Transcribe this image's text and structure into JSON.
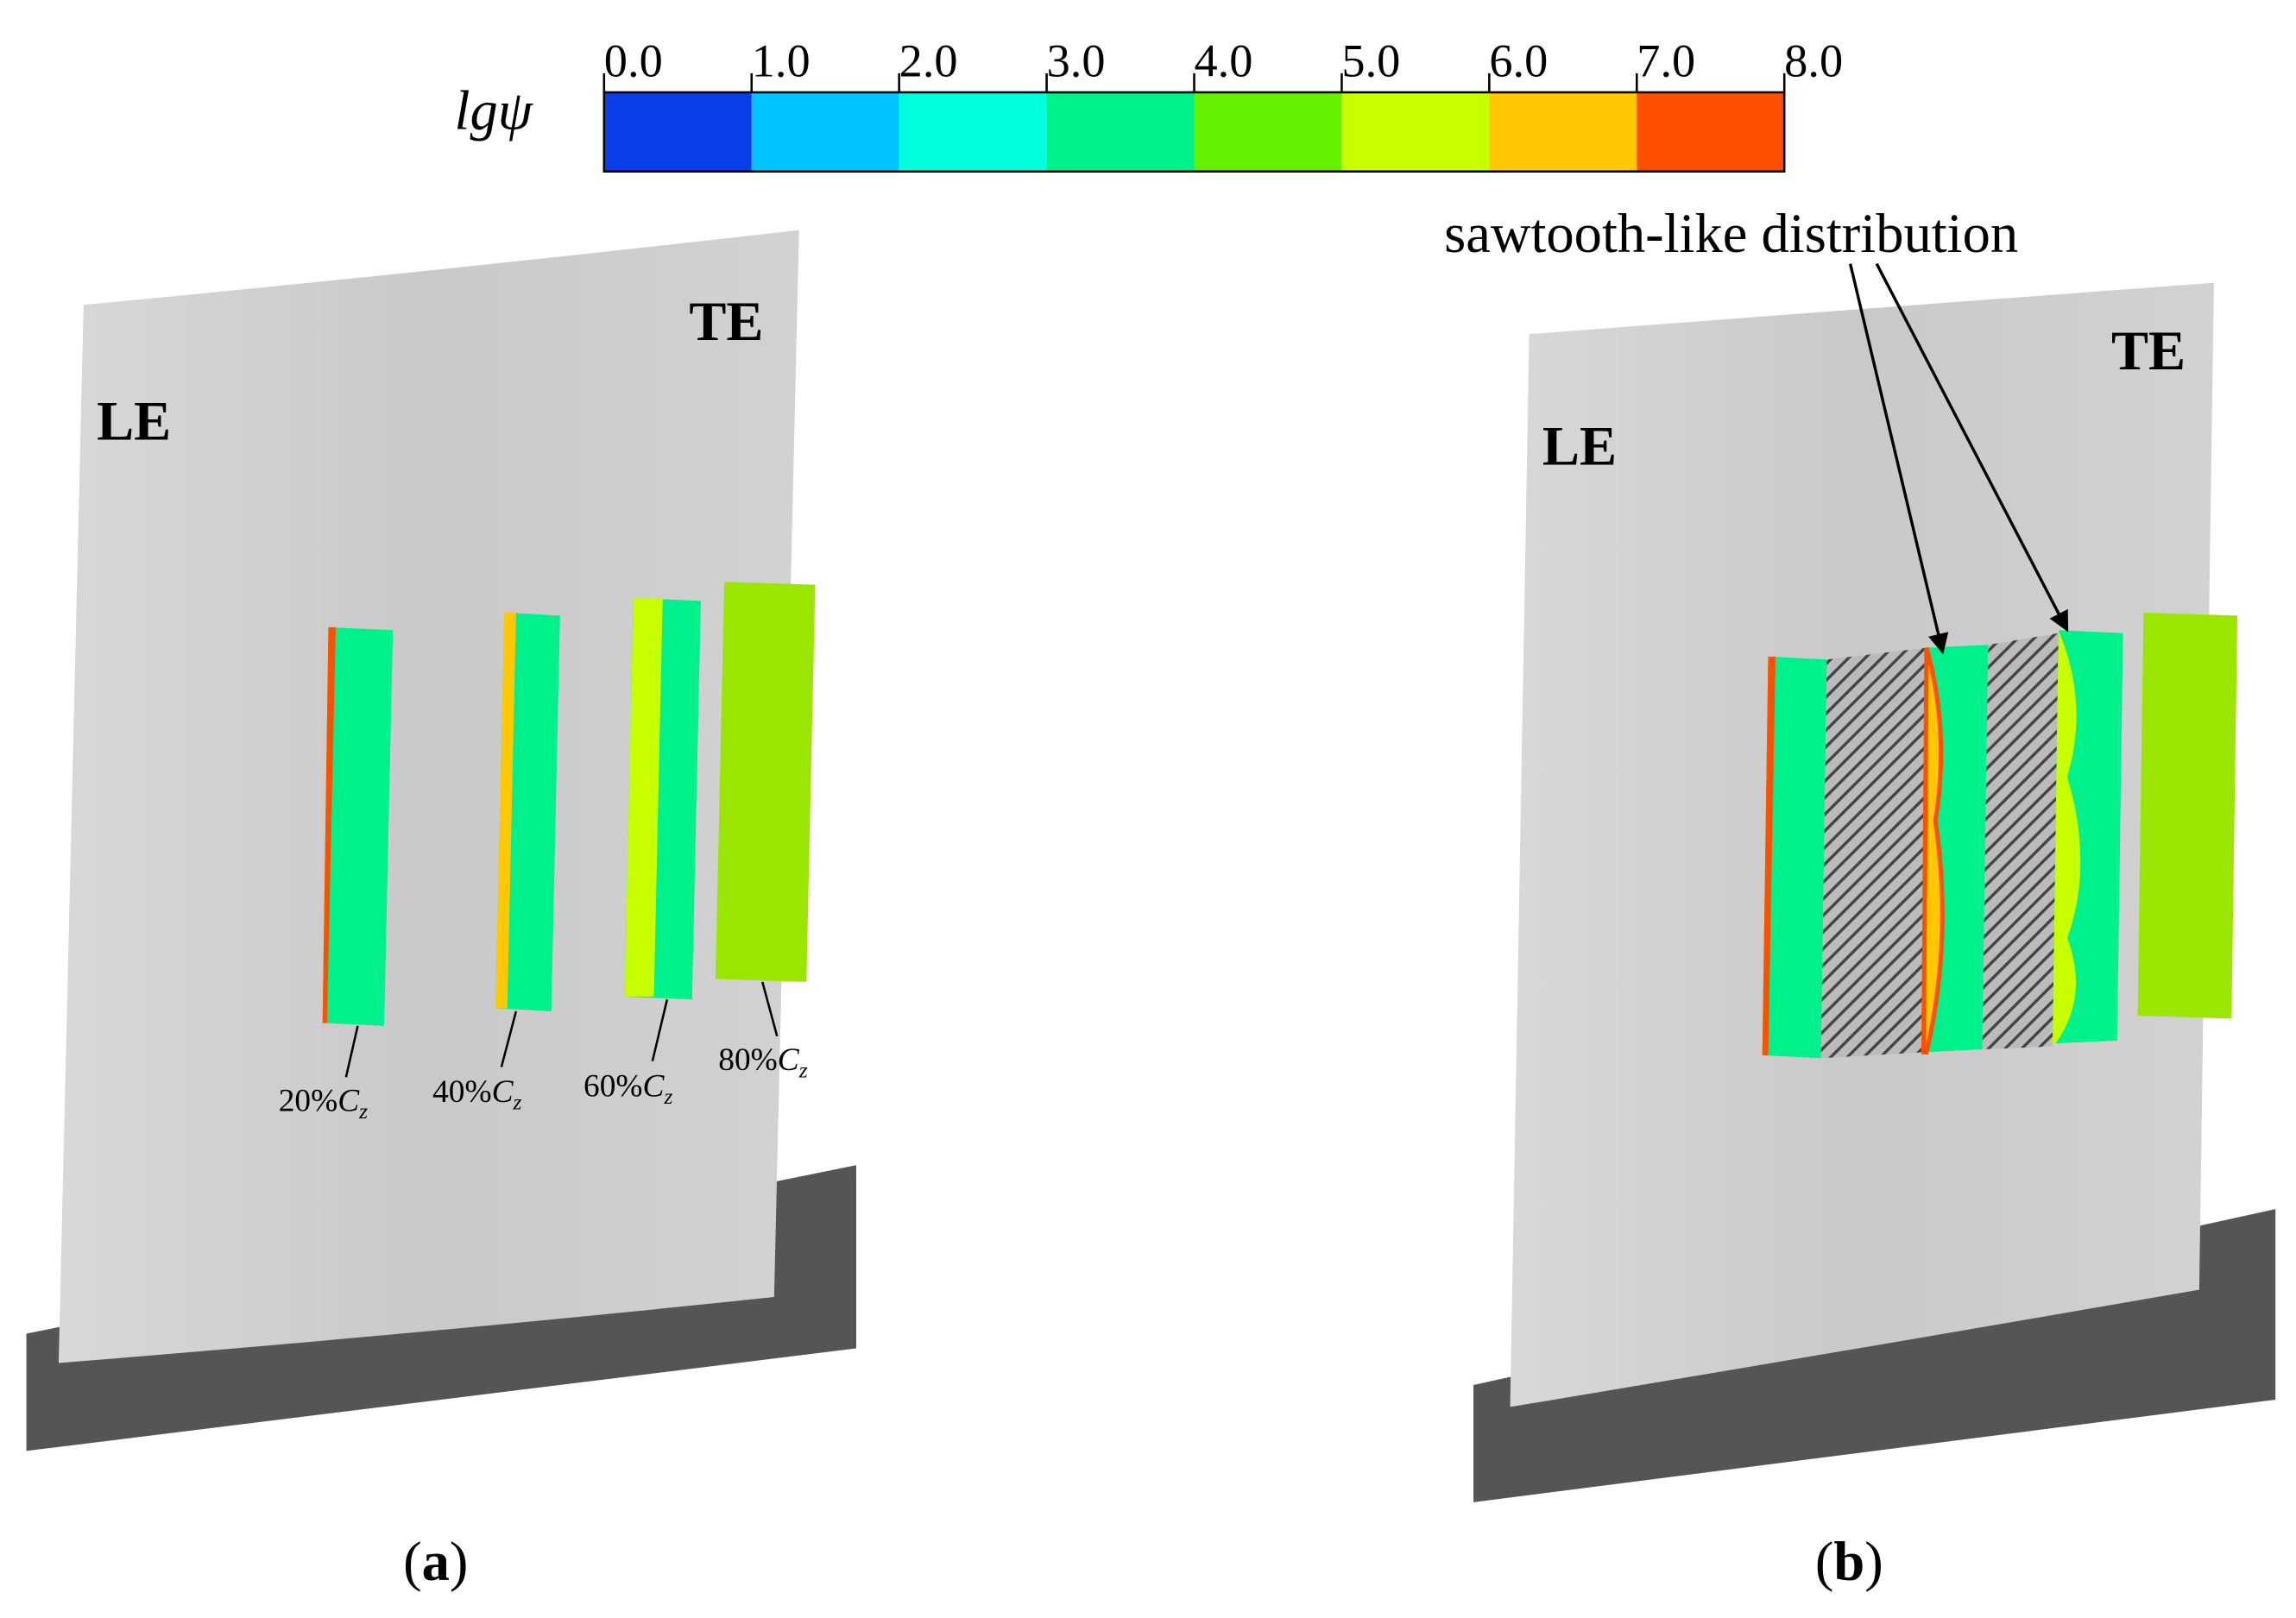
{
  "colorbar": {
    "label": "lgψ",
    "ticks": [
      "0.0",
      "1.0",
      "2.0",
      "3.0",
      "4.0",
      "5.0",
      "6.0",
      "7.0",
      "8.0"
    ],
    "colors": [
      "#0a3ee6",
      "#00c4ff",
      "#00ffdc",
      "#00f08c",
      "#64f000",
      "#c8ff00",
      "#ffc800",
      "#ff5000"
    ]
  },
  "panel_a": {
    "le": "LE",
    "te": "TE",
    "caption": {
      "open": "(",
      "letter": "a",
      "close": ")"
    },
    "stations": [
      {
        "prefix": "20%",
        "symbol": "C",
        "subscript": "z"
      },
      {
        "prefix": "40%",
        "symbol": "C",
        "subscript": "z"
      },
      {
        "prefix": "60%",
        "symbol": "C",
        "subscript": "z"
      },
      {
        "prefix": "80%",
        "symbol": "C",
        "subscript": "z"
      }
    ]
  },
  "panel_b": {
    "le": "LE",
    "te": "TE",
    "annotation": "sawtooth-like distribution",
    "caption": {
      "open": "(",
      "letter": "b",
      "close": ")"
    }
  }
}
